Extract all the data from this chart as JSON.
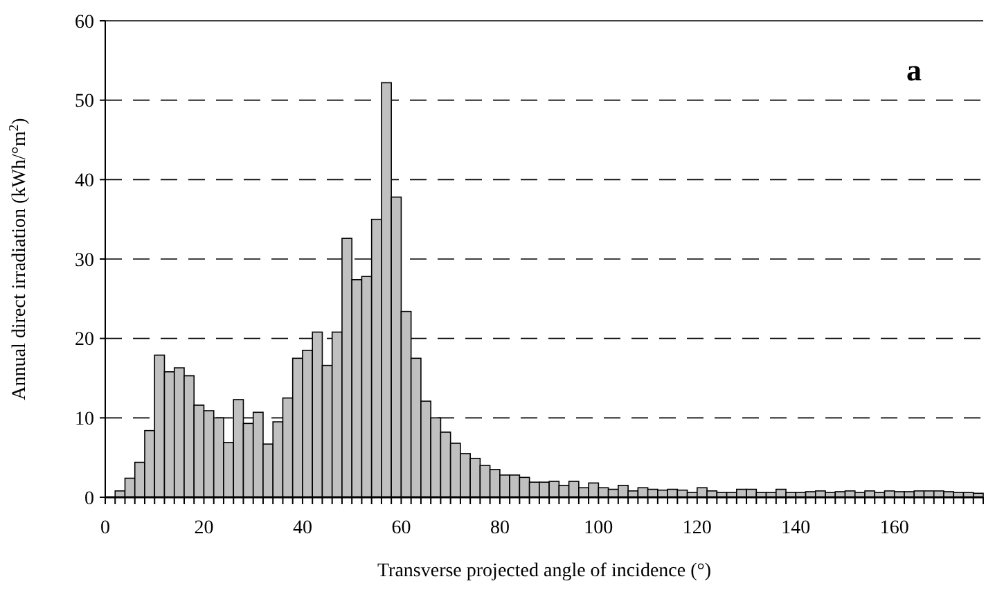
{
  "chart_data": {
    "type": "histogram",
    "xlabel": "Transverse projected angle of incidence  (°)",
    "ylabel": "Annual direct irradiation  (kWh/°m$^{2}$)",
    "annotations": [
      "a"
    ],
    "bins": [
      0,
      2,
      4,
      6,
      8,
      10,
      12,
      14,
      16,
      18,
      20,
      22,
      24,
      26,
      28,
      30,
      32,
      34,
      36,
      38,
      40,
      42,
      44,
      46,
      48,
      50,
      52,
      54,
      56,
      58,
      60,
      62,
      64,
      66,
      68,
      70,
      72,
      74,
      76,
      78,
      80,
      82,
      84,
      86,
      88,
      90,
      92,
      94,
      96,
      98,
      100,
      102,
      104,
      106,
      108,
      110,
      112,
      114,
      116,
      118,
      120,
      122,
      124,
      126,
      128,
      130,
      132,
      134,
      136,
      138,
      140,
      142,
      144,
      146,
      148,
      150,
      152,
      154,
      156,
      158,
      160,
      162,
      164,
      166,
      168,
      170,
      172,
      174,
      176,
      178
    ],
    "values": [
      0,
      0.8,
      2.4,
      4.4,
      8.4,
      17.9,
      15.8,
      16.3,
      15.3,
      11.6,
      10.9,
      10,
      6.9,
      12.3,
      9.3,
      10.7,
      6.7,
      9.5,
      12.5,
      17.5,
      18.5,
      20.8,
      16.6,
      20.8,
      32.6,
      27.4,
      27.8,
      35,
      52.2,
      37.8,
      23.4,
      17.5,
      12.1,
      10,
      8.2,
      6.8,
      5.5,
      4.9,
      4,
      3.5,
      2.8,
      2.8,
      2.5,
      1.9,
      1.9,
      2,
      1.5,
      2,
      1.2,
      1.8,
      1.2,
      1,
      1.5,
      0.8,
      1.2,
      1,
      0.9,
      1,
      0.9,
      0.6,
      1.2,
      0.8,
      0.6,
      0.6,
      1,
      1,
      0.6,
      0.6,
      1,
      0.6,
      0.6,
      0.7,
      0.8,
      0.6,
      0.7,
      0.8,
      0.6,
      0.8,
      0.6,
      0.8,
      0.7,
      0.7,
      0.8,
      0.8,
      0.8,
      0.7,
      0.6,
      0.6,
      0.5
    ],
    "color": "#c0c0c0",
    "xlim": [
      0,
      178
    ],
    "ylim": [
      0,
      60
    ],
    "yticks": [
      0,
      10,
      20,
      30,
      40,
      50,
      60
    ],
    "xticks": [
      0,
      {
        "value": 2,
        "label": null
      },
      {
        "value": 4,
        "label": null
      },
      {
        "value": 6,
        "label": null
      },
      {
        "value": 8,
        "label": null
      },
      {
        "value": 10,
        "label": null
      },
      {
        "value": 12,
        "label": null
      },
      {
        "value": 14,
        "label": null
      },
      {
        "value": 16,
        "label": null
      },
      {
        "value": 18,
        "label": null
      },
      20,
      {
        "value": 22,
        "label": null
      },
      {
        "value": 24,
        "label": null
      },
      {
        "value": 26,
        "label": null
      },
      {
        "value": 28,
        "label": null
      },
      {
        "value": 30,
        "label": null
      },
      {
        "value": 32,
        "label": null
      },
      {
        "value": 34,
        "label": null
      },
      {
        "value": 36,
        "label": null
      },
      {
        "value": 38,
        "label": null
      },
      40,
      {
        "value": 42,
        "label": null
      },
      {
        "value": 44,
        "label": null
      },
      {
        "value": 46,
        "label": null
      },
      {
        "value": 48,
        "label": null
      },
      {
        "value": 50,
        "label": null
      },
      {
        "value": 52,
        "label": null
      },
      {
        "value": 54,
        "label": null
      },
      {
        "value": 56,
        "label": null
      },
      {
        "value": 58,
        "label": null
      },
      60,
      {
        "value": 62,
        "label": null
      },
      {
        "value": 64,
        "label": null
      },
      {
        "value": 66,
        "label": null
      },
      {
        "value": 68,
        "label": null
      },
      {
        "value": 70,
        "label": null
      },
      {
        "value": 72,
        "label": null
      },
      {
        "value": 74,
        "label": null
      },
      {
        "value": 76,
        "label": null
      },
      {
        "value": 78,
        "label": null
      },
      80,
      {
        "value": 82,
        "label": null
      },
      {
        "value": 84,
        "label": null
      },
      {
        "value": 86,
        "label": null
      },
      {
        "value": 88,
        "label": null
      },
      {
        "value": 90,
        "label": null
      },
      {
        "value": 92,
        "label": null
      },
      {
        "value": 94,
        "label": null
      },
      {
        "value": 96,
        "label": null
      },
      {
        "value": 98,
        "label": null
      },
      100,
      {
        "value": 102,
        "label": null
      },
      {
        "value": 104,
        "label": null
      },
      {
        "value": 106,
        "label": null
      },
      {
        "value": 108,
        "label": null
      },
      {
        "value": 110,
        "label": null
      },
      {
        "value": 112,
        "label": null
      },
      {
        "value": 114,
        "label": null
      },
      {
        "value": 116,
        "label": null
      },
      {
        "value": 118,
        "label": null
      },
      120,
      {
        "value": 122,
        "label": null
      },
      {
        "value": 124,
        "label": null
      },
      {
        "value": 126,
        "label": null
      },
      {
        "value": 128,
        "label": null
      },
      {
        "value": 130,
        "label": null
      },
      {
        "value": 132,
        "label": null
      },
      {
        "value": 134,
        "label": null
      },
      {
        "value": 136,
        "label": null
      },
      {
        "value": 138,
        "label": null
      },
      140,
      {
        "value": 142,
        "label": null
      },
      {
        "value": 144,
        "label": null
      },
      {
        "value": 146,
        "label": null
      },
      {
        "value": 148,
        "label": null
      },
      {
        "value": 150,
        "label": null
      },
      {
        "value": 152,
        "label": null
      },
      {
        "value": 154,
        "label": null
      },
      {
        "value": 156,
        "label": null
      },
      {
        "value": 158,
        "label": null
      },
      160,
      {
        "value": 162,
        "label": null
      },
      {
        "value": 164,
        "label": null
      },
      {
        "value": 166,
        "label": null
      },
      {
        "value": 168,
        "label": null
      },
      {
        "value": 170,
        "label": null
      },
      {
        "value": 172,
        "label": null
      },
      {
        "value": 174,
        "label": null
      },
      {
        "value": 176,
        "label": null
      },
      {
        "value": 178,
        "label": null
      }
    ],
    "grid": "y",
    "line_style": "dashed"
  }
}
